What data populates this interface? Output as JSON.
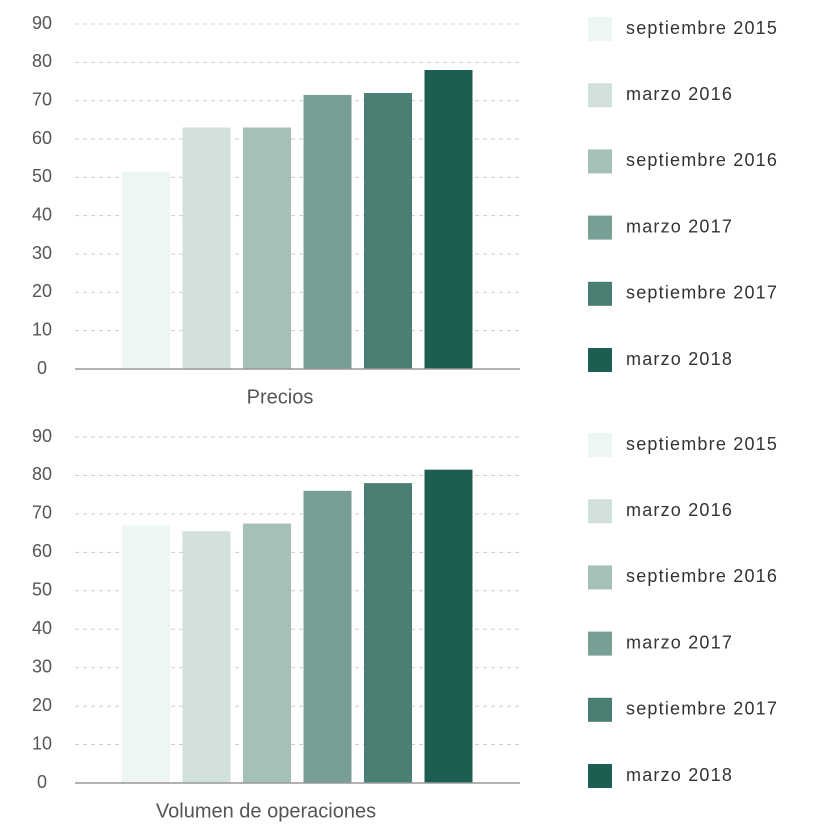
{
  "chart_data": [
    {
      "type": "bar",
      "categories": [
        "Precios"
      ],
      "ylim": [
        0,
        90
      ],
      "yticks": [
        0,
        10,
        20,
        30,
        40,
        50,
        60,
        70,
        80,
        90
      ],
      "grid": true,
      "legend": "right",
      "series": [
        {
          "name": "septiembre 2015",
          "color": "#eef6f4",
          "values": [
            51.5
          ]
        },
        {
          "name": "marzo 2016",
          "color": "#d2e0dd",
          "values": [
            63
          ]
        },
        {
          "name": "septiembre 2016",
          "color": "#a5bfb9",
          "values": [
            63
          ]
        },
        {
          "name": "marzo 2017",
          "color": "#789f96",
          "values": [
            71.5
          ]
        },
        {
          "name": "septiembre 2017",
          "color": "#4a7f74",
          "values": [
            72
          ]
        },
        {
          "name": "marzo 2018",
          "color": "#1c5e52",
          "values": [
            78
          ]
        }
      ]
    },
    {
      "type": "bar",
      "categories": [
        "Volumen de operaciones"
      ],
      "ylim": [
        0,
        90
      ],
      "yticks": [
        0,
        10,
        20,
        30,
        40,
        50,
        60,
        70,
        80,
        90
      ],
      "grid": true,
      "legend": "right",
      "series": [
        {
          "name": "septiembre 2015",
          "color": "#eef6f4",
          "values": [
            67
          ]
        },
        {
          "name": "marzo 2016",
          "color": "#d2e0dd",
          "values": [
            65.5
          ]
        },
        {
          "name": "septiembre 2016",
          "color": "#a5bfb9",
          "values": [
            67.5
          ]
        },
        {
          "name": "marzo 2017",
          "color": "#789f96",
          "values": [
            76
          ]
        },
        {
          "name": "septiembre 2017",
          "color": "#4a7f74",
          "values": [
            78
          ]
        },
        {
          "name": "marzo 2018",
          "color": "#1c5e52",
          "values": [
            81.5
          ]
        }
      ]
    }
  ]
}
